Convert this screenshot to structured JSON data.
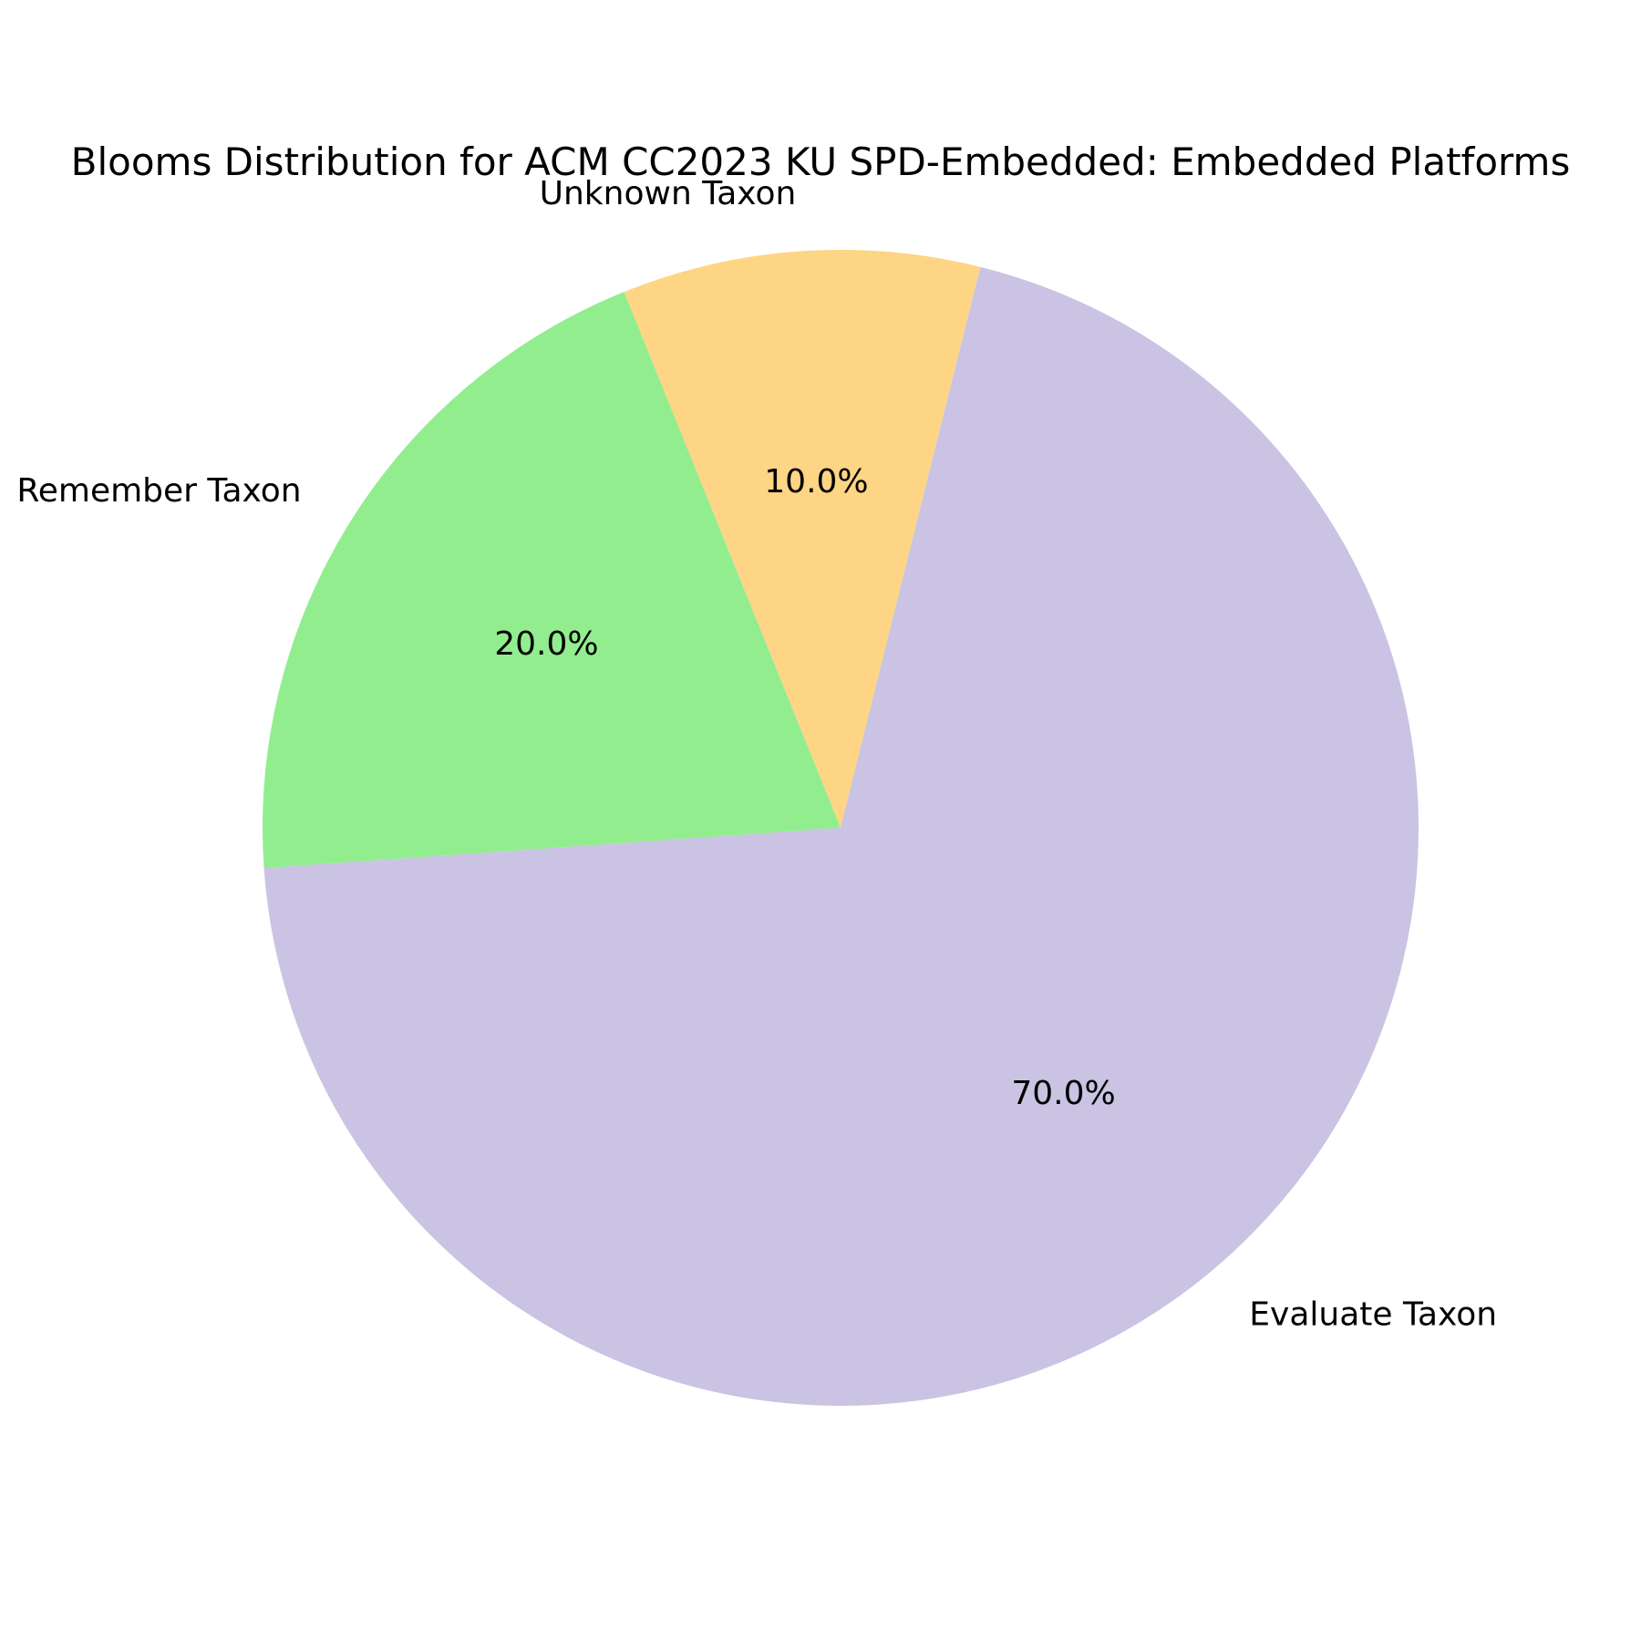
{
  "chart_data": {
    "type": "pie",
    "title": "Blooms Distribution for ACM CC2023 KU SPD-Embedded: Embedded Platforms",
    "categories": [
      "Unknown Taxon",
      "Remember Taxon",
      "Evaluate Taxon"
    ],
    "values": [
      10.0,
      20.0,
      70.0
    ],
    "value_labels": [
      "10.0%",
      "20.0%",
      "70.0%"
    ],
    "colors": [
      "#fdd585",
      "#92ed8f",
      "#cac3e3"
    ],
    "start_angle_deg": 76,
    "direction": "counterclockwise",
    "legend": "none"
  }
}
